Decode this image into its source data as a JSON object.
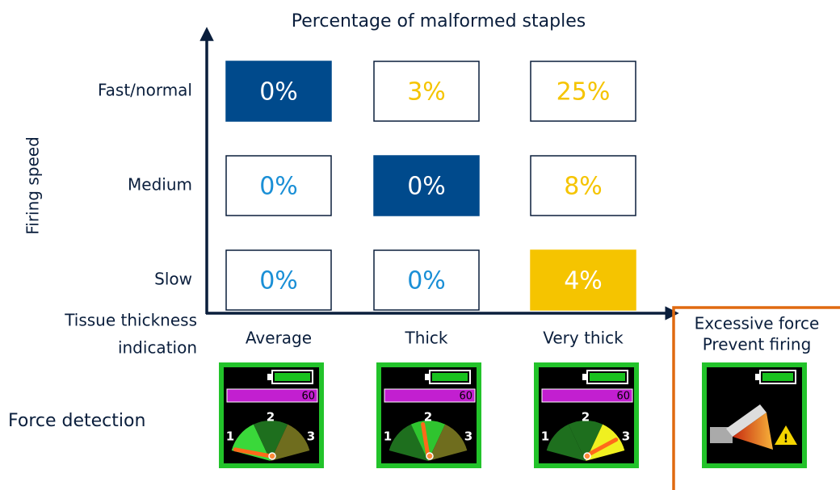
{
  "title": "Percentage of malformed staples",
  "y_axis_label": "Firing speed",
  "x_axis_label": [
    "Tissue thickness",
    "indication"
  ],
  "rows": [
    "Fast/normal",
    "Medium",
    "Slow"
  ],
  "columns": [
    "Average",
    "Thick",
    "Very thick"
  ],
  "cells": [
    [
      "0%",
      "3%",
      "25%"
    ],
    [
      "0%",
      "0%",
      "8%"
    ],
    [
      "0%",
      "0%",
      "4%"
    ]
  ],
  "warning": [
    "Excessive force",
    "Prevent firing"
  ],
  "force_label": "Force detection",
  "gauges": [
    {
      "bar_value": "60",
      "scale": [
        "1",
        "2",
        "3"
      ]
    },
    {
      "bar_value": "60",
      "scale": [
        "1",
        "2",
        "3"
      ]
    },
    {
      "bar_value": "60",
      "scale": [
        "1",
        "2",
        "3"
      ]
    }
  ]
}
